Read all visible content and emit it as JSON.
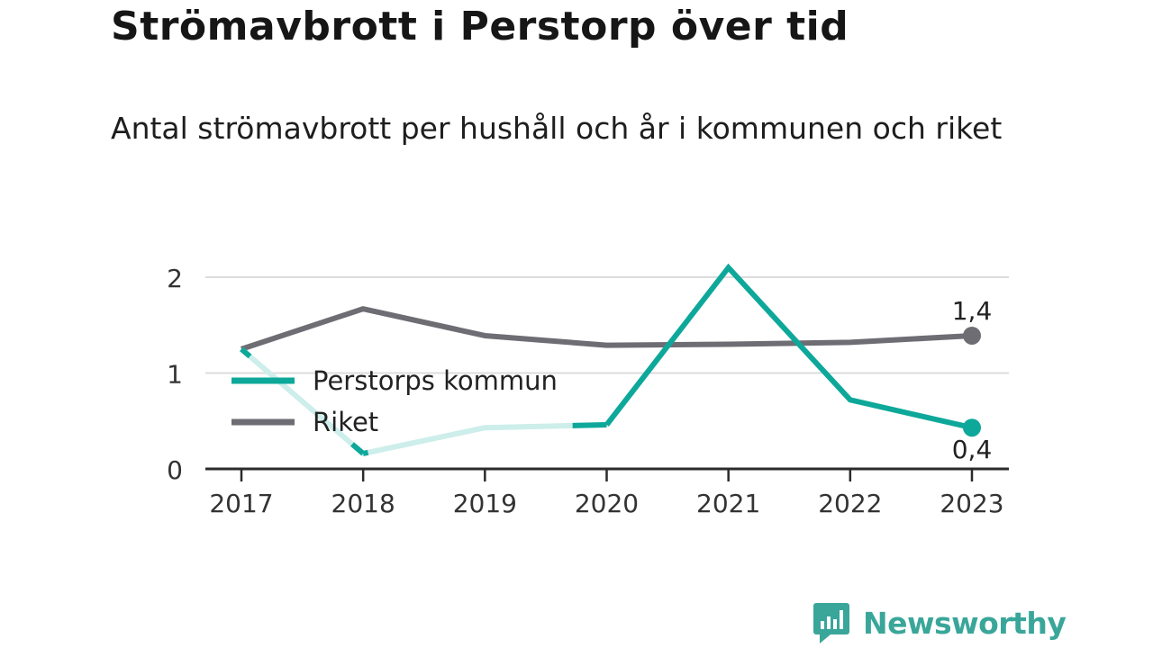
{
  "title": "Strömavbrott i Perstorp över tid",
  "subtitle": "Antal strömavbrott per hushåll och år i kommunen och riket",
  "brand": {
    "name": "Newsworthy",
    "color": "#3aa69a",
    "icon": "bar-chart-speech-bubble-icon"
  },
  "colors": {
    "perstorp": "#0ea89a",
    "perstorp_faded": "#cdeeea",
    "riket": "#6e6d74",
    "grid": "#dcdcdc",
    "axis": "#2b2b2b"
  },
  "chart_data": {
    "type": "line",
    "categories": [
      "2017",
      "2018",
      "2019",
      "2020",
      "2021",
      "2022",
      "2023"
    ],
    "ylim": [
      0,
      2
    ],
    "yticks": [
      "0",
      "1",
      "2"
    ],
    "grid": true,
    "legend_position": "left-middle",
    "series": [
      {
        "name": "Perstorps kommun",
        "values": [
          1.25,
          0.16,
          0.43,
          0.46,
          2.1,
          0.72,
          0.43
        ],
        "end_label": "0,4"
      },
      {
        "name": "Riket",
        "values": [
          1.25,
          1.67,
          1.39,
          1.29,
          1.3,
          1.32,
          1.39
        ],
        "end_label": "1,4"
      }
    ]
  }
}
